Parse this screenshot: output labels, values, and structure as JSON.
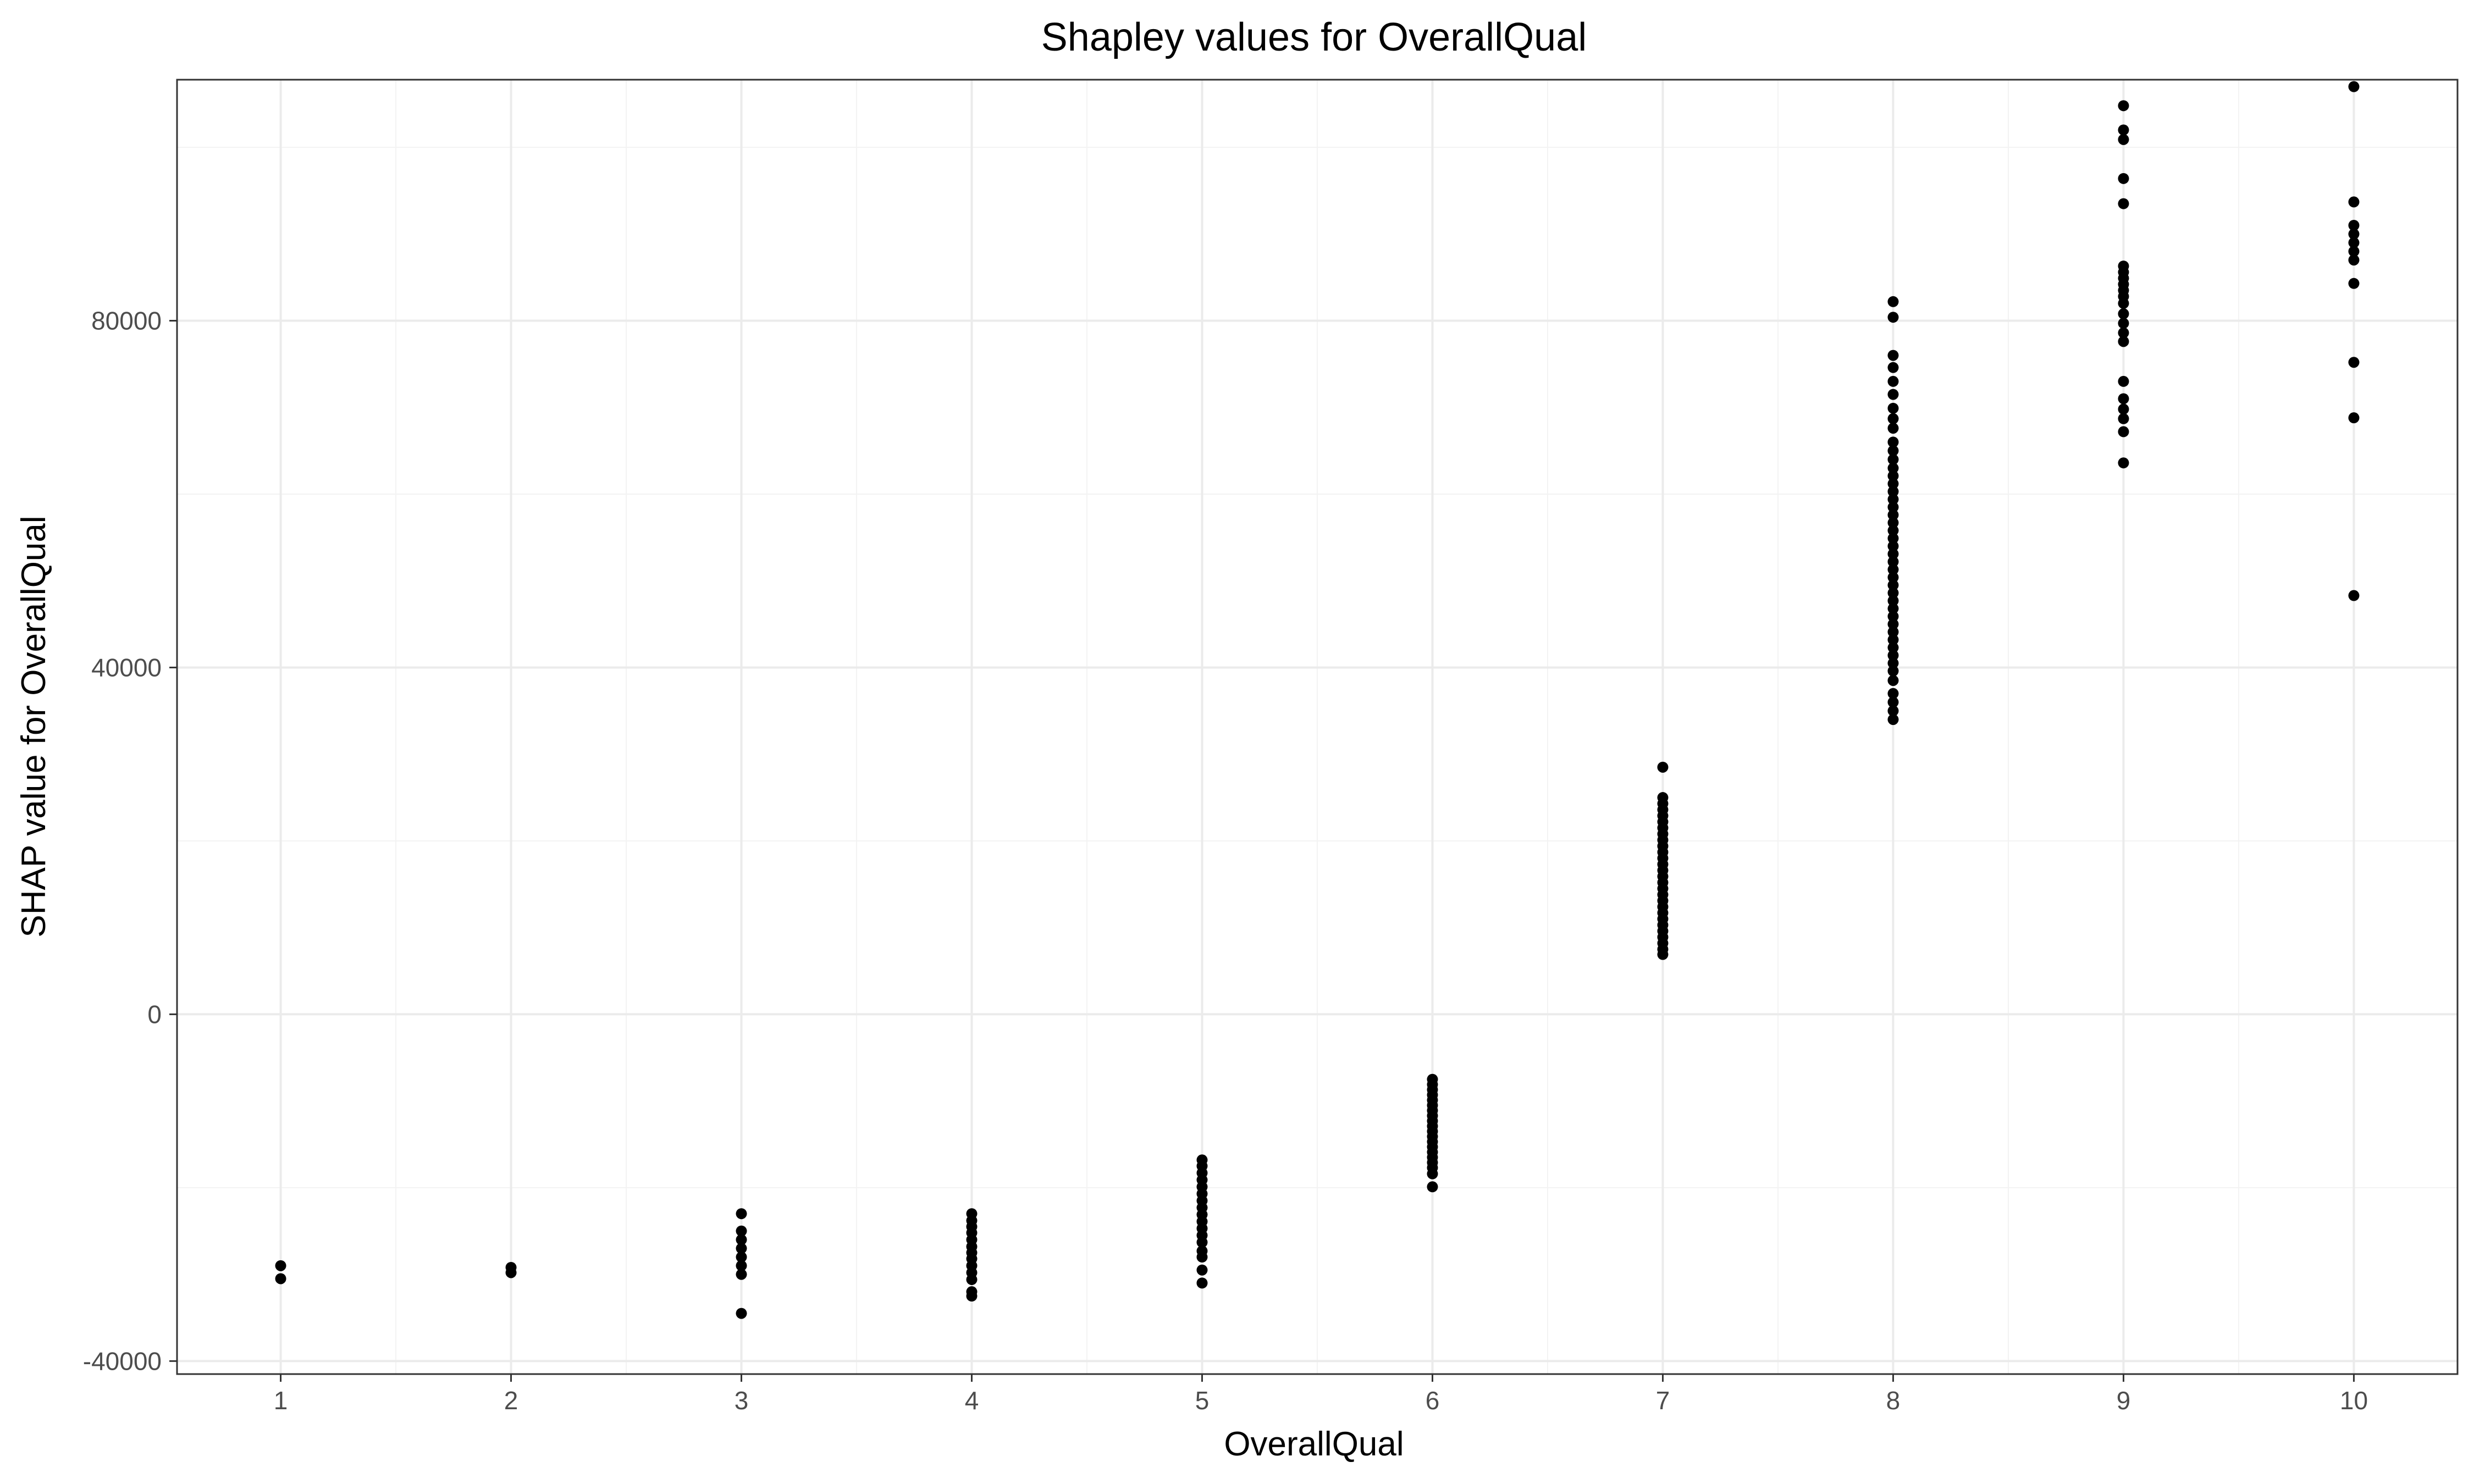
{
  "chart_data": {
    "type": "scatter",
    "title": "Shapley values for OverallQual",
    "xlabel": "OverallQual",
    "ylabel": "SHAP value for OverallQual",
    "xlim": [
      0.55,
      10.45
    ],
    "ylim": [
      -41500,
      107800
    ],
    "x_ticks": [
      1,
      2,
      3,
      4,
      5,
      6,
      7,
      8,
      9,
      10
    ],
    "x_tick_labels": [
      "1",
      "2",
      "3",
      "4",
      "5",
      "6",
      "7",
      "8",
      "9",
      "10"
    ],
    "y_ticks": [
      -40000,
      0,
      40000,
      80000
    ],
    "y_tick_labels": [
      "-40000",
      "0",
      "40000",
      "80000"
    ],
    "x_minor_gridlines": [
      1.5,
      2.5,
      3.5,
      4.5,
      5.5,
      6.5,
      7.5,
      8.5,
      9.5
    ],
    "y_minor_gridlines": [
      -20000,
      20000,
      60000,
      100000
    ],
    "grid": true,
    "legend": "none",
    "colors": {
      "points": "#000000",
      "grid_major": "#ebebeb",
      "grid_minor": "#f3f3f3",
      "panel_border": "#333333",
      "background": "#ffffff"
    },
    "series": [
      {
        "points": [
          [
            1,
            -29000
          ],
          [
            1,
            -30500
          ],
          [
            2,
            -29200
          ],
          [
            2,
            -29800
          ],
          [
            3,
            -23000
          ],
          [
            3,
            -25000
          ],
          [
            3,
            -26000
          ],
          [
            3,
            -27000
          ],
          [
            3,
            -28000
          ],
          [
            3,
            -29000
          ],
          [
            3,
            -30000
          ],
          [
            3,
            -34500
          ],
          [
            4,
            -23000
          ],
          [
            4,
            -23800
          ],
          [
            4,
            -24500
          ],
          [
            4,
            -25200
          ],
          [
            4,
            -26000
          ],
          [
            4,
            -26800
          ],
          [
            4,
            -27500
          ],
          [
            4,
            -28200
          ],
          [
            4,
            -29000
          ],
          [
            4,
            -29800
          ],
          [
            4,
            -30600
          ],
          [
            4,
            -32000
          ],
          [
            4,
            -32500
          ],
          [
            5,
            -16800
          ],
          [
            5,
            -17500
          ],
          [
            5,
            -18300
          ],
          [
            5,
            -19100
          ],
          [
            5,
            -19900
          ],
          [
            5,
            -20700
          ],
          [
            5,
            -21500
          ],
          [
            5,
            -22300
          ],
          [
            5,
            -23100
          ],
          [
            5,
            -23900
          ],
          [
            5,
            -24700
          ],
          [
            5,
            -25500
          ],
          [
            5,
            -26300
          ],
          [
            5,
            -27300
          ],
          [
            5,
            -28000
          ],
          [
            5,
            -29500
          ],
          [
            5,
            -31000
          ],
          [
            6,
            -7500
          ],
          [
            6,
            -8100
          ],
          [
            6,
            -8700
          ],
          [
            6,
            -9300
          ],
          [
            6,
            -9900
          ],
          [
            6,
            -10500
          ],
          [
            6,
            -11100
          ],
          [
            6,
            -11700
          ],
          [
            6,
            -12300
          ],
          [
            6,
            -12900
          ],
          [
            6,
            -13500
          ],
          [
            6,
            -14100
          ],
          [
            6,
            -14700
          ],
          [
            6,
            -15300
          ],
          [
            6,
            -15900
          ],
          [
            6,
            -16500
          ],
          [
            6,
            -17100
          ],
          [
            6,
            -17700
          ],
          [
            6,
            -18400
          ],
          [
            6,
            -19900
          ],
          [
            7,
            28500
          ],
          [
            7,
            25000
          ],
          [
            7,
            24300
          ],
          [
            7,
            23600
          ],
          [
            7,
            22900
          ],
          [
            7,
            22200
          ],
          [
            7,
            21500
          ],
          [
            7,
            20800
          ],
          [
            7,
            20100
          ],
          [
            7,
            19400
          ],
          [
            7,
            18700
          ],
          [
            7,
            18000
          ],
          [
            7,
            17300
          ],
          [
            7,
            16600
          ],
          [
            7,
            15900
          ],
          [
            7,
            15200
          ],
          [
            7,
            14500
          ],
          [
            7,
            13800
          ],
          [
            7,
            13100
          ],
          [
            7,
            12400
          ],
          [
            7,
            11700
          ],
          [
            7,
            11000
          ],
          [
            7,
            10300
          ],
          [
            7,
            9600
          ],
          [
            7,
            8900
          ],
          [
            7,
            8200
          ],
          [
            7,
            7500
          ],
          [
            7,
            6900
          ],
          [
            8,
            82200
          ],
          [
            8,
            80400
          ],
          [
            8,
            76000
          ],
          [
            8,
            74600
          ],
          [
            8,
            73000
          ],
          [
            8,
            71500
          ],
          [
            8,
            69900
          ],
          [
            8,
            68700
          ],
          [
            8,
            67600
          ],
          [
            8,
            66000
          ],
          [
            8,
            65000
          ],
          [
            8,
            64000
          ],
          [
            8,
            63000
          ],
          [
            8,
            62100
          ],
          [
            8,
            61200
          ],
          [
            8,
            60300
          ],
          [
            8,
            59400
          ],
          [
            8,
            58500
          ],
          [
            8,
            57600
          ],
          [
            8,
            56700
          ],
          [
            8,
            55800
          ],
          [
            8,
            54900
          ],
          [
            8,
            54000
          ],
          [
            8,
            53100
          ],
          [
            8,
            52200
          ],
          [
            8,
            51300
          ],
          [
            8,
            50400
          ],
          [
            8,
            49500
          ],
          [
            8,
            48600
          ],
          [
            8,
            47700
          ],
          [
            8,
            46800
          ],
          [
            8,
            45900
          ],
          [
            8,
            45000
          ],
          [
            8,
            44100
          ],
          [
            8,
            43200
          ],
          [
            8,
            42300
          ],
          [
            8,
            41400
          ],
          [
            8,
            40500
          ],
          [
            8,
            39600
          ],
          [
            8,
            38500
          ],
          [
            8,
            37000
          ],
          [
            8,
            36000
          ],
          [
            8,
            35000
          ],
          [
            8,
            34000
          ],
          [
            9,
            104800
          ],
          [
            9,
            102000
          ],
          [
            9,
            100900
          ],
          [
            9,
            96400
          ],
          [
            9,
            93500
          ],
          [
            9,
            86300
          ],
          [
            9,
            85600
          ],
          [
            9,
            84900
          ],
          [
            9,
            84200
          ],
          [
            9,
            83500
          ],
          [
            9,
            82800
          ],
          [
            9,
            82000
          ],
          [
            9,
            80800
          ],
          [
            9,
            79700
          ],
          [
            9,
            78600
          ],
          [
            9,
            77600
          ],
          [
            9,
            73000
          ],
          [
            9,
            71000
          ],
          [
            9,
            69800
          ],
          [
            9,
            68700
          ],
          [
            9,
            67200
          ],
          [
            9,
            63600
          ],
          [
            10,
            107000
          ],
          [
            10,
            93700
          ],
          [
            10,
            91000
          ],
          [
            10,
            90000
          ],
          [
            10,
            89000
          ],
          [
            10,
            88000
          ],
          [
            10,
            87000
          ],
          [
            10,
            84300
          ],
          [
            10,
            75200
          ],
          [
            10,
            68800
          ],
          [
            10,
            48300
          ]
        ]
      }
    ]
  }
}
